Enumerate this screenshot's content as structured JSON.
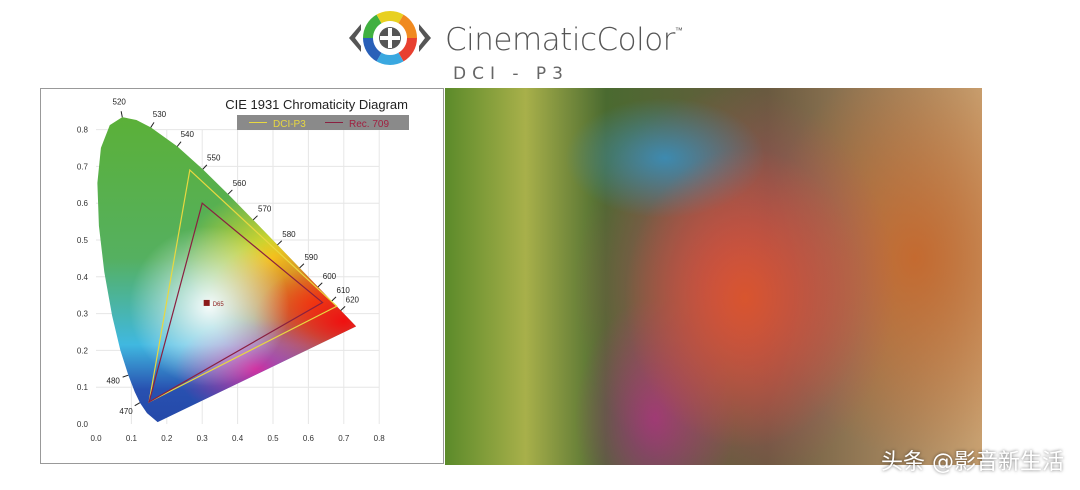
{
  "logo": {
    "brand": "CinematicColor",
    "trademark": "™",
    "subtitle": "DCI - P3"
  },
  "watermark": "头条 @影音新生活",
  "chart_data": {
    "type": "line",
    "title": "CIE 1931 Chromaticity Diagram",
    "xlim": [
      0.0,
      0.8
    ],
    "ylim": [
      0.0,
      0.8
    ],
    "x_ticks": [
      "0.0",
      "0.1",
      "0.2",
      "0.3",
      "0.4",
      "0.5",
      "0.6",
      "0.7",
      "0.8"
    ],
    "y_ticks": [
      "0.0",
      "0.1",
      "0.2",
      "0.3",
      "0.4",
      "0.5",
      "0.6",
      "0.7",
      "0.8"
    ],
    "grid": true,
    "legend_placement": "top-right",
    "spectral_locus": [
      [
        0.1741,
        0.005
      ],
      [
        0.144,
        0.0297
      ],
      [
        0.1241,
        0.0578
      ],
      [
        0.1096,
        0.0868
      ],
      [
        0.0913,
        0.1327
      ],
      [
        0.0687,
        0.2007
      ],
      [
        0.0454,
        0.295
      ],
      [
        0.0235,
        0.4127
      ],
      [
        0.0082,
        0.5384
      ],
      [
        0.0039,
        0.6548
      ],
      [
        0.0139,
        0.7502
      ],
      [
        0.0389,
        0.812
      ],
      [
        0.0743,
        0.8338
      ],
      [
        0.1142,
        0.8262
      ],
      [
        0.1547,
        0.8059
      ],
      [
        0.2296,
        0.7543
      ],
      [
        0.3016,
        0.6923
      ],
      [
        0.3731,
        0.6245
      ],
      [
        0.4441,
        0.5547
      ],
      [
        0.5125,
        0.4866
      ],
      [
        0.5752,
        0.4242
      ],
      [
        0.627,
        0.3725
      ],
      [
        0.6658,
        0.334
      ],
      [
        0.6915,
        0.3083
      ],
      [
        0.7347,
        0.2653
      ]
    ],
    "wavelength_labels": [
      {
        "label": "470",
        "x": 0.1241,
        "y": 0.0578
      },
      {
        "label": "480",
        "x": 0.0913,
        "y": 0.1327
      },
      {
        "label": "520",
        "x": 0.0743,
        "y": 0.8338
      },
      {
        "label": "530",
        "x": 0.1547,
        "y": 0.8059
      },
      {
        "label": "540",
        "x": 0.2296,
        "y": 0.7543
      },
      {
        "label": "550",
        "x": 0.3016,
        "y": 0.6923
      },
      {
        "label": "560",
        "x": 0.3731,
        "y": 0.6245
      },
      {
        "label": "570",
        "x": 0.4441,
        "y": 0.5547
      },
      {
        "label": "580",
        "x": 0.5125,
        "y": 0.4866
      },
      {
        "label": "590",
        "x": 0.5752,
        "y": 0.4242
      },
      {
        "label": "600",
        "x": 0.627,
        "y": 0.3725
      },
      {
        "label": "610",
        "x": 0.6658,
        "y": 0.334
      },
      {
        "label": "620",
        "x": 0.6915,
        "y": 0.3083
      }
    ],
    "series": [
      {
        "name": "DCI-P3",
        "color": "#e8d840",
        "points": [
          [
            0.68,
            0.32
          ],
          [
            0.265,
            0.69
          ],
          [
            0.15,
            0.06
          ]
        ]
      },
      {
        "name": "Rec. 709",
        "color": "#8a2040",
        "points": [
          [
            0.64,
            0.33
          ],
          [
            0.3,
            0.6
          ],
          [
            0.15,
            0.06
          ]
        ]
      }
    ],
    "white_point": {
      "label": "D65",
      "x": 0.3127,
      "y": 0.329,
      "color": "#8b1a1a"
    }
  }
}
